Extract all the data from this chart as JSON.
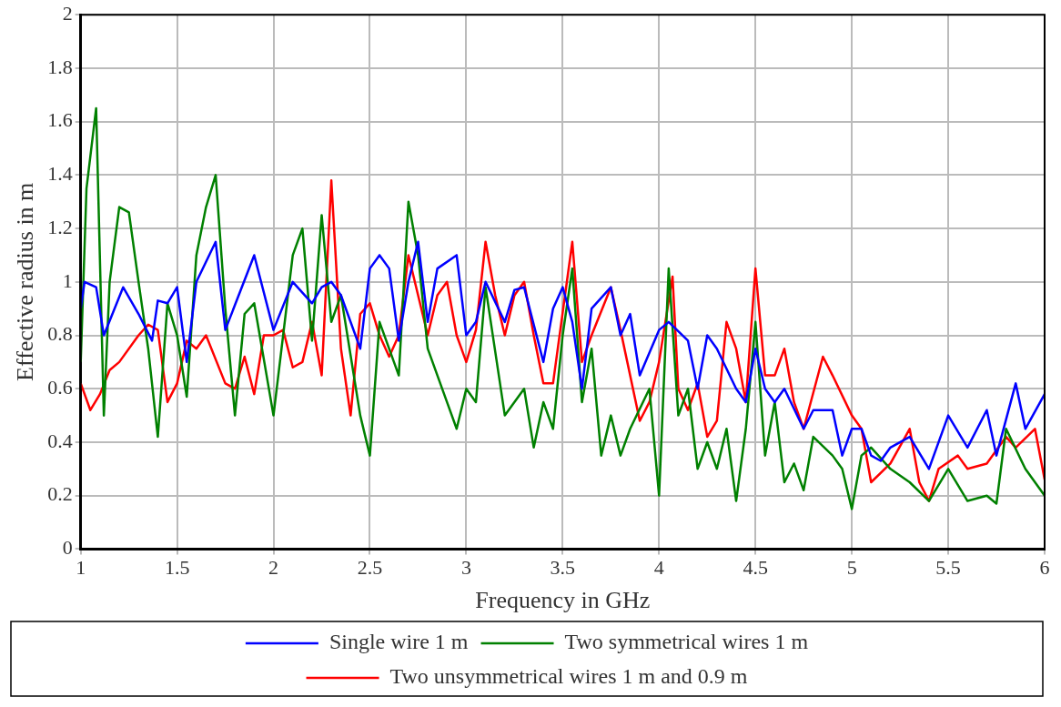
{
  "chart_data": {
    "type": "line",
    "xlabel": "Frequency in GHz",
    "ylabel": "Effective radius in m",
    "xlim": [
      1,
      6
    ],
    "xticks": [
      1,
      1.5,
      2,
      2.5,
      3,
      3.5,
      4,
      4.5,
      5,
      5.5,
      6
    ],
    "ylim": [
      0,
      2
    ],
    "yticks": [
      0,
      0.2,
      0.4,
      0.6,
      0.8,
      1,
      1.2,
      1.4,
      1.6,
      1.8,
      2
    ],
    "grid": true,
    "legend": "bottom",
    "marker": "none",
    "line_style": "solid",
    "series": [
      {
        "name": "Single wire 1 m",
        "color": "#0000ff",
        "x": [
          1,
          1.02,
          1.08,
          1.12,
          1.22,
          1.3,
          1.37,
          1.4,
          1.45,
          1.5,
          1.55,
          1.6,
          1.7,
          1.75,
          1.9,
          2.0,
          2.1,
          2.2,
          2.25,
          2.3,
          2.35,
          2.45,
          2.5,
          2.55,
          2.6,
          2.65,
          2.7,
          2.75,
          2.8,
          2.85,
          2.95,
          3.0,
          3.05,
          3.1,
          3.2,
          3.25,
          3.3,
          3.4,
          3.45,
          3.5,
          3.55,
          3.6,
          3.65,
          3.75,
          3.8,
          3.85,
          3.9,
          4.0,
          4.05,
          4.15,
          4.2,
          4.25,
          4.3,
          4.4,
          4.45,
          4.5,
          4.55,
          4.6,
          4.65,
          4.75,
          4.8,
          4.9,
          4.95,
          5.0,
          5.05,
          5.1,
          5.15,
          5.2,
          5.3,
          5.4,
          5.5,
          5.6,
          5.7,
          5.75,
          5.85,
          5.9,
          6
        ],
        "values": [
          0.9,
          1.0,
          0.98,
          0.8,
          0.98,
          0.88,
          0.78,
          0.93,
          0.92,
          0.98,
          0.7,
          1.0,
          1.15,
          0.82,
          1.1,
          0.82,
          1.0,
          0.92,
          0.98,
          1.0,
          0.95,
          0.75,
          1.05,
          1.1,
          1.05,
          0.78,
          1.0,
          1.15,
          0.85,
          1.05,
          1.1,
          0.8,
          0.85,
          1.0,
          0.85,
          0.97,
          0.98,
          0.7,
          0.9,
          0.98,
          0.85,
          0.6,
          0.9,
          0.98,
          0.8,
          0.88,
          0.65,
          0.82,
          0.85,
          0.78,
          0.6,
          0.8,
          0.75,
          0.6,
          0.55,
          0.75,
          0.6,
          0.55,
          0.6,
          0.45,
          0.52,
          0.52,
          0.35,
          0.45,
          0.45,
          0.35,
          0.33,
          0.38,
          0.42,
          0.3,
          0.5,
          0.38,
          0.52,
          0.35,
          0.62,
          0.45,
          0.58
        ]
      },
      {
        "name": "Two symmetrical wires 1 m",
        "color": "#008000",
        "x": [
          1,
          1.03,
          1.08,
          1.12,
          1.15,
          1.2,
          1.25,
          1.3,
          1.35,
          1.4,
          1.45,
          1.5,
          1.55,
          1.6,
          1.65,
          1.7,
          1.75,
          1.8,
          1.85,
          1.9,
          2.0,
          2.1,
          2.15,
          2.2,
          2.25,
          2.3,
          2.35,
          2.45,
          2.5,
          2.55,
          2.65,
          2.7,
          2.75,
          2.8,
          2.9,
          2.95,
          3.0,
          3.05,
          3.1,
          3.2,
          3.3,
          3.35,
          3.4,
          3.45,
          3.5,
          3.55,
          3.6,
          3.65,
          3.7,
          3.75,
          3.8,
          3.85,
          3.95,
          4.0,
          4.05,
          4.1,
          4.15,
          4.2,
          4.25,
          4.3,
          4.35,
          4.4,
          4.45,
          4.5,
          4.55,
          4.6,
          4.65,
          4.7,
          4.75,
          4.8,
          4.9,
          4.95,
          5.0,
          5.05,
          5.1,
          5.2,
          5.3,
          5.4,
          5.5,
          5.6,
          5.7,
          5.75,
          5.8,
          5.9,
          6
        ],
        "values": [
          0.7,
          1.35,
          1.65,
          0.5,
          1.0,
          1.28,
          1.26,
          1.0,
          0.75,
          0.42,
          0.92,
          0.8,
          0.57,
          1.1,
          1.28,
          1.4,
          0.9,
          0.5,
          0.88,
          0.92,
          0.5,
          1.1,
          1.2,
          0.78,
          1.25,
          0.85,
          0.95,
          0.5,
          0.35,
          0.85,
          0.65,
          1.3,
          1.1,
          0.75,
          0.55,
          0.45,
          0.6,
          0.55,
          0.98,
          0.5,
          0.6,
          0.38,
          0.55,
          0.45,
          0.8,
          1.05,
          0.55,
          0.75,
          0.35,
          0.5,
          0.35,
          0.45,
          0.6,
          0.2,
          1.05,
          0.5,
          0.6,
          0.3,
          0.4,
          0.3,
          0.45,
          0.18,
          0.45,
          0.85,
          0.35,
          0.55,
          0.25,
          0.32,
          0.22,
          0.42,
          0.35,
          0.3,
          0.15,
          0.35,
          0.38,
          0.3,
          0.25,
          0.18,
          0.3,
          0.18,
          0.2,
          0.17,
          0.45,
          0.3,
          0.2
        ]
      },
      {
        "name": "Two unsymmetrical wires 1 m and 0.9 m",
        "color": "#ff0000",
        "x": [
          1,
          1.05,
          1.1,
          1.15,
          1.2,
          1.3,
          1.35,
          1.4,
          1.45,
          1.5,
          1.55,
          1.6,
          1.65,
          1.75,
          1.8,
          1.85,
          1.9,
          1.95,
          2.0,
          2.05,
          2.1,
          2.15,
          2.2,
          2.25,
          2.3,
          2.35,
          2.4,
          2.45,
          2.5,
          2.55,
          2.6,
          2.65,
          2.7,
          2.75,
          2.8,
          2.85,
          2.9,
          2.95,
          3.0,
          3.05,
          3.1,
          3.15,
          3.2,
          3.25,
          3.3,
          3.35,
          3.4,
          3.45,
          3.55,
          3.6,
          3.65,
          3.75,
          3.8,
          3.9,
          3.95,
          4.0,
          4.07,
          4.1,
          4.15,
          4.2,
          4.25,
          4.3,
          4.35,
          4.4,
          4.45,
          4.5,
          4.55,
          4.6,
          4.65,
          4.7,
          4.75,
          4.85,
          4.9,
          5.0,
          5.05,
          5.1,
          5.2,
          5.3,
          5.35,
          5.4,
          5.45,
          5.55,
          5.6,
          5.7,
          5.8,
          5.85,
          5.95,
          6
        ],
        "values": [
          0.62,
          0.52,
          0.58,
          0.67,
          0.7,
          0.8,
          0.84,
          0.82,
          0.55,
          0.62,
          0.78,
          0.75,
          0.8,
          0.62,
          0.6,
          0.72,
          0.58,
          0.8,
          0.8,
          0.82,
          0.68,
          0.7,
          0.85,
          0.65,
          1.38,
          0.75,
          0.5,
          0.88,
          0.92,
          0.8,
          0.72,
          0.8,
          1.1,
          0.95,
          0.8,
          0.95,
          1.0,
          0.8,
          0.7,
          0.82,
          1.15,
          0.95,
          0.8,
          0.95,
          1.0,
          0.8,
          0.62,
          0.62,
          1.15,
          0.7,
          0.8,
          0.98,
          0.82,
          0.48,
          0.55,
          0.7,
          1.02,
          0.6,
          0.52,
          0.62,
          0.42,
          0.48,
          0.85,
          0.75,
          0.55,
          1.05,
          0.65,
          0.65,
          0.75,
          0.55,
          0.45,
          0.72,
          0.65,
          0.5,
          0.45,
          0.25,
          0.32,
          0.45,
          0.25,
          0.18,
          0.3,
          0.35,
          0.3,
          0.32,
          0.42,
          0.38,
          0.45,
          0.26
        ]
      }
    ]
  }
}
